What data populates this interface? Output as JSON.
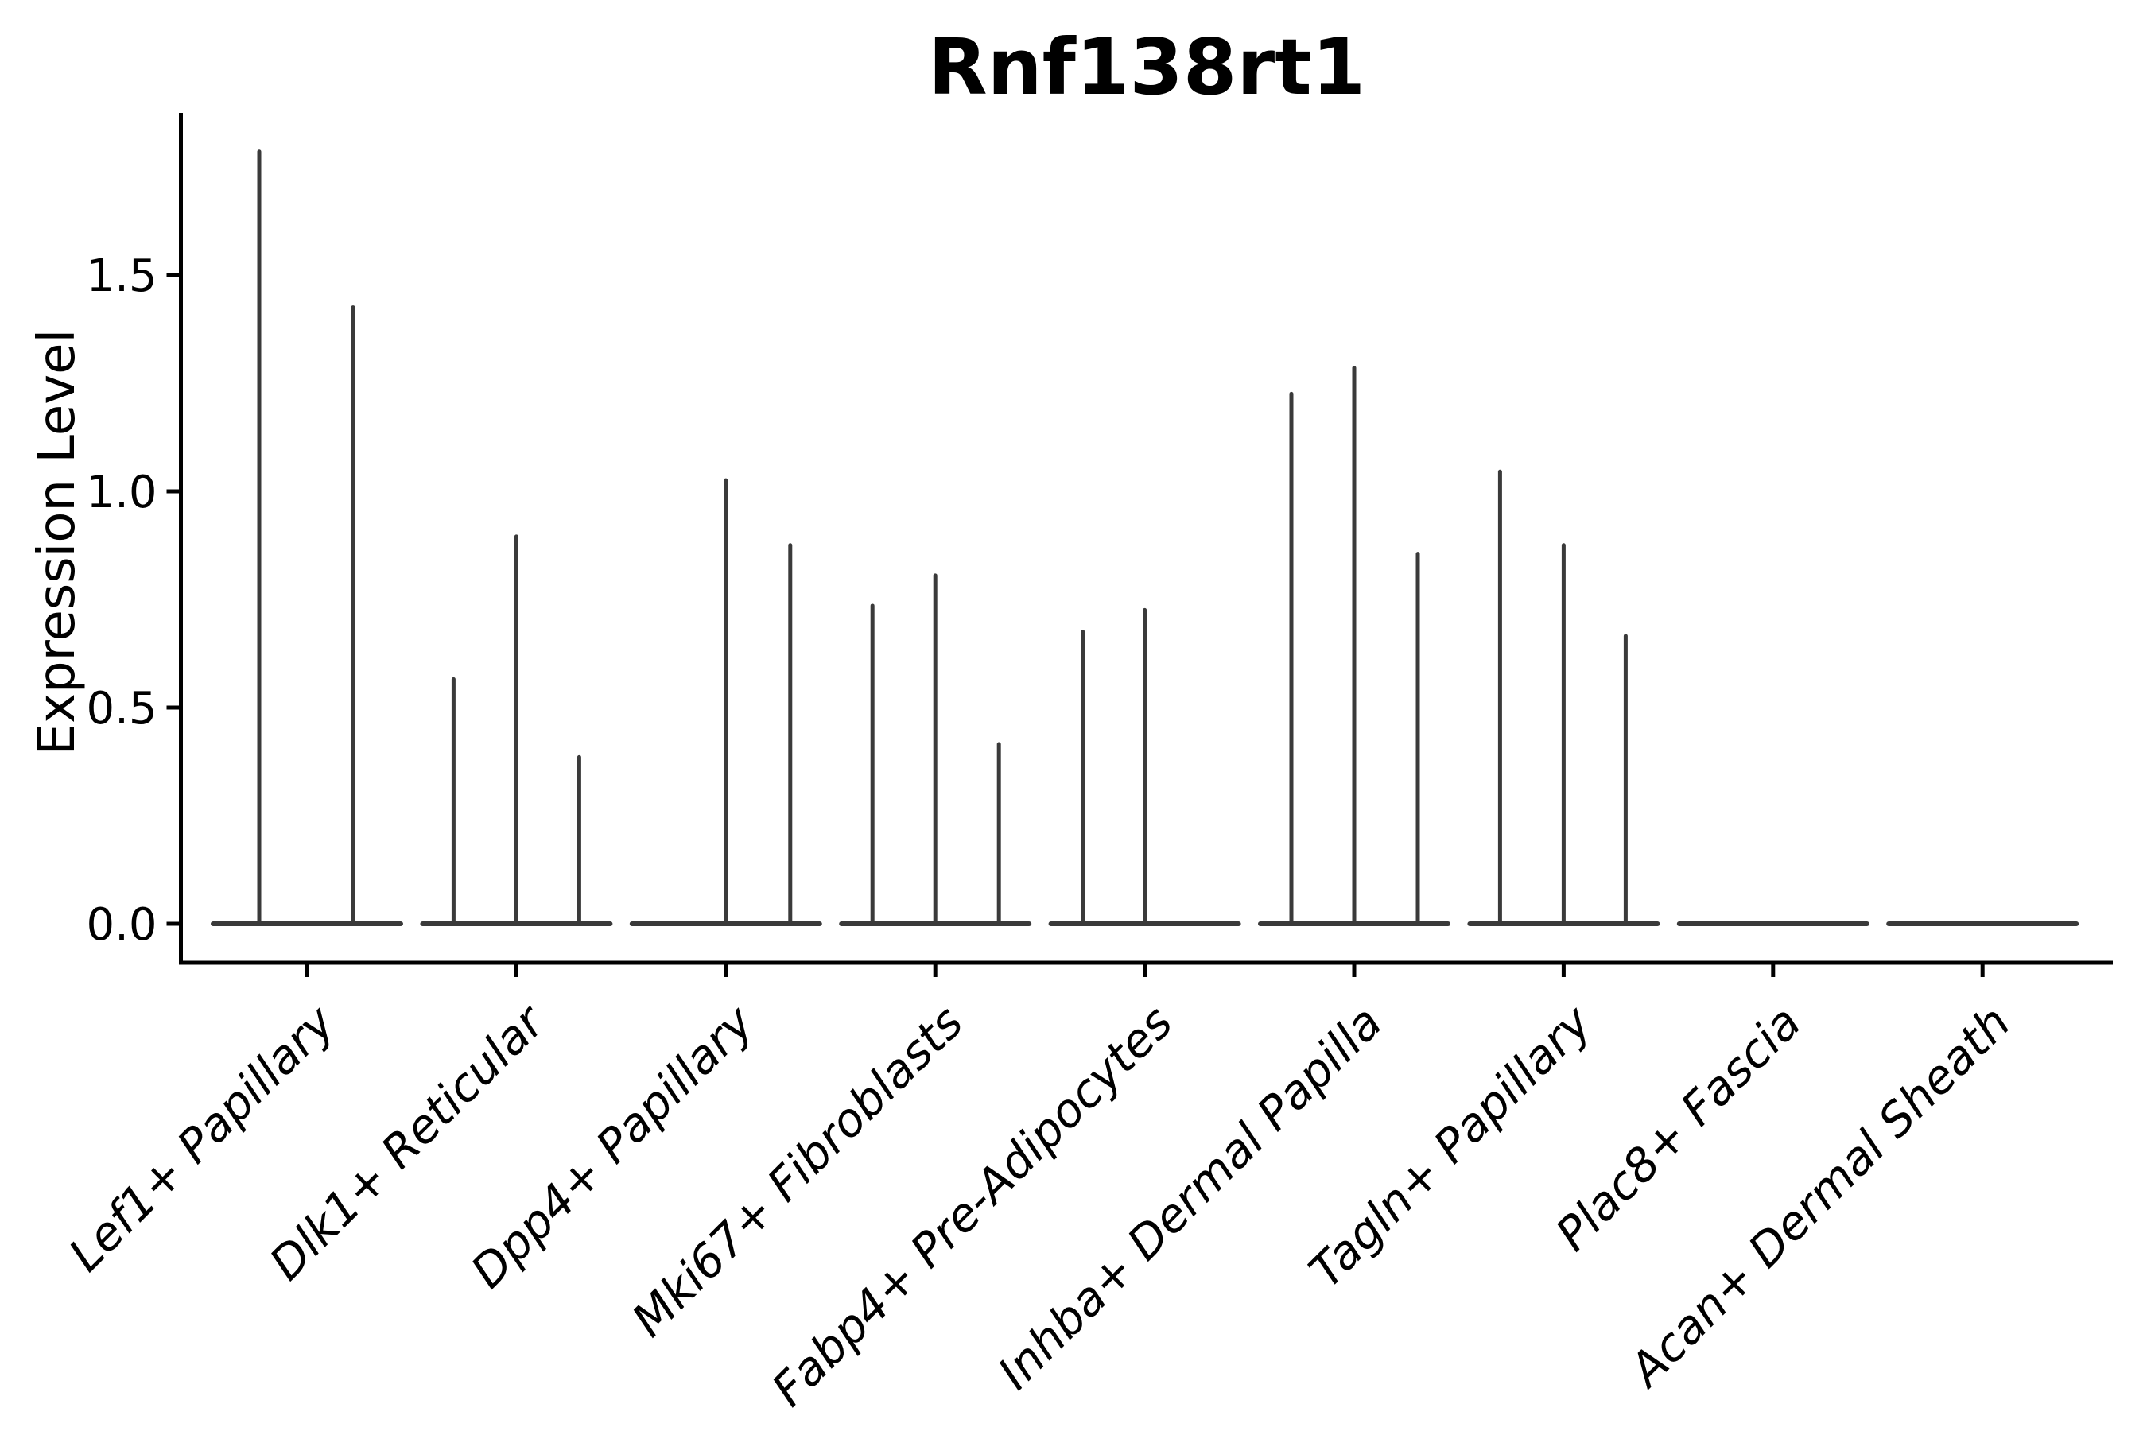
{
  "figure": {
    "title": "Rnf138rt1",
    "y_axis_label": "Expression Level",
    "background": "#ffffff"
  },
  "chart_data": {
    "type": "violin",
    "title": "Rnf138rt1",
    "xlabel": "",
    "ylabel": "Expression Level",
    "ylim": [
      0,
      1.88
    ],
    "yticks": [
      0.0,
      0.5,
      1.0,
      1.5
    ],
    "ytick_labels": [
      "0.0",
      "0.5",
      "1.0",
      "1.5"
    ],
    "grid": false,
    "legend": "none",
    "categories": [
      "Lef1+ Papillary",
      "Dlk1+ Reticular",
      "Dpp4+ Papillary",
      "Mki67+ Fibroblasts",
      "Fabp4+ Pre-Adipocytes",
      "Inhba+ Dermal Papilla",
      "Tagln+ Papillary",
      "Plac8+ Fascia",
      "Acan+ Dermal Sheath"
    ],
    "series": [
      {
        "category": "Lef1+ Papillary",
        "violins": [
          {
            "offset": -60,
            "peak": 1.79
          },
          {
            "offset": 58,
            "peak": 1.43
          }
        ]
      },
      {
        "category": "Dlk1+ Reticular",
        "violins": [
          {
            "offset": -79,
            "peak": 0.57
          },
          {
            "offset": 0,
            "peak": 0.9
          },
          {
            "offset": 79,
            "peak": 0.39
          }
        ]
      },
      {
        "category": "Dpp4+ Papillary",
        "violins": [
          {
            "offset": 0,
            "peak": 1.03
          },
          {
            "offset": 81,
            "peak": 0.88
          }
        ]
      },
      {
        "category": "Mki67+ Fibroblasts",
        "violins": [
          {
            "offset": -79,
            "peak": 0.74
          },
          {
            "offset": 0,
            "peak": 0.81
          },
          {
            "offset": 80,
            "peak": 0.42
          }
        ]
      },
      {
        "category": "Fabp4+ Pre-Adipocytes",
        "violins": [
          {
            "offset": -78,
            "peak": 0.68
          },
          {
            "offset": 0,
            "peak": 0.73
          }
        ]
      },
      {
        "category": "Inhba+ Dermal Papilla",
        "violins": [
          {
            "offset": -79,
            "peak": 1.23
          },
          {
            "offset": 0,
            "peak": 1.29
          },
          {
            "offset": 80,
            "peak": 0.86
          }
        ]
      },
      {
        "category": "Tagln+ Papillary",
        "violins": [
          {
            "offset": -80,
            "peak": 1.05
          },
          {
            "offset": 0,
            "peak": 0.88
          },
          {
            "offset": 78,
            "peak": 0.67
          }
        ]
      },
      {
        "category": "Plac8+ Fascia",
        "violins": []
      },
      {
        "category": "Acan+ Dermal Sheath",
        "violins": []
      }
    ],
    "style": {
      "violin_color": "#3a3a3a",
      "axis_color": "#000000",
      "text_color": "#000000"
    }
  }
}
